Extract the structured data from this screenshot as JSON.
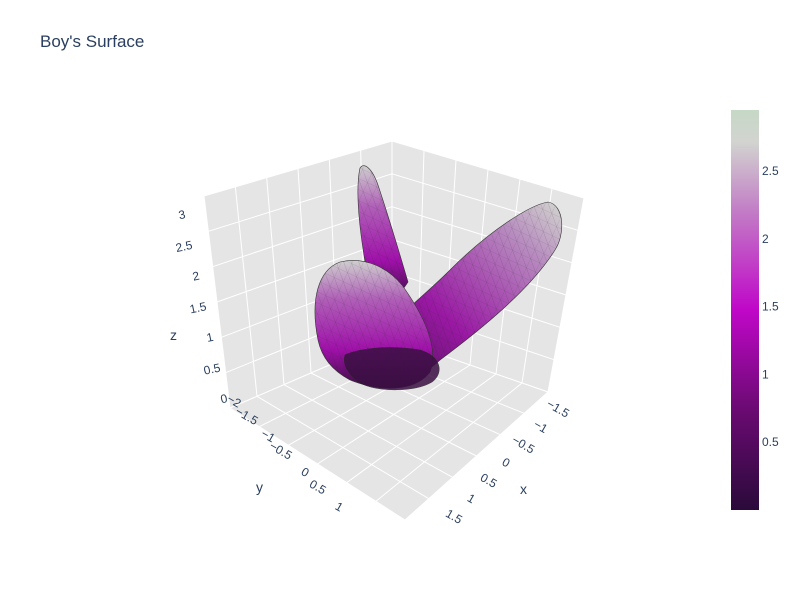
{
  "chart_data": {
    "type": "surface",
    "title": "Boy's Surface",
    "x_axis": {
      "label": "x",
      "ticks": [
        "−1.5",
        "−1",
        "−0.5",
        "0",
        "0.5",
        "1",
        "1.5"
      ]
    },
    "y_axis": {
      "label": "y",
      "ticks": [
        "−2",
        "−1.5",
        "−1",
        "−0.5",
        "0",
        "0.5",
        "1"
      ]
    },
    "z_axis": {
      "label": "z",
      "ticks": [
        "0",
        "0.5",
        "1",
        "1.5",
        "2",
        "2.5",
        "3"
      ]
    },
    "colorbar": {
      "ticks": [
        "0.5",
        "1",
        "1.5",
        "2",
        "2.5"
      ],
      "tick_values": [
        0.5,
        1,
        1.5,
        2,
        2.5
      ],
      "range": [
        0,
        2.95
      ]
    },
    "colorscale": [
      "#2a0a3a",
      "#6a0a72",
      "#c007c8",
      "#c27ec6",
      "#d2d4d0",
      "#c6d8c6"
    ],
    "background_color": "#e5e5e5",
    "grid": true
  }
}
